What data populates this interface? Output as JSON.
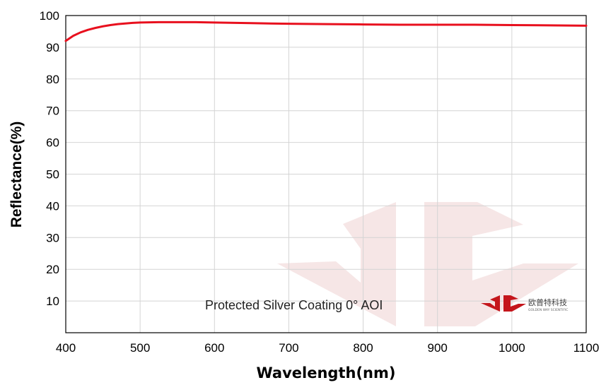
{
  "chart_data": {
    "type": "line",
    "title": "",
    "xlabel": "Wavelength(nm)",
    "ylabel": "Reflectance(%)",
    "xlim": [
      400,
      1100
    ],
    "ylim": [
      0,
      100
    ],
    "x_ticks": [
      400,
      500,
      600,
      700,
      800,
      900,
      1000,
      1100
    ],
    "y_ticks": [
      10,
      20,
      30,
      40,
      50,
      60,
      70,
      80,
      90,
      100
    ],
    "grid": true,
    "series": [
      {
        "color": "#e8101e",
        "x": [
          400,
          410,
          420,
          430,
          440,
          450,
          460,
          470,
          480,
          490,
          500,
          525,
          550,
          575,
          600,
          650,
          700,
          750,
          800,
          850,
          900,
          950,
          1000,
          1050,
          1100
        ],
        "y": [
          92.0,
          93.6,
          94.7,
          95.5,
          96.1,
          96.6,
          97.0,
          97.3,
          97.5,
          97.7,
          97.8,
          97.9,
          97.9,
          97.9,
          97.8,
          97.6,
          97.4,
          97.3,
          97.2,
          97.1,
          97.1,
          97.1,
          97.0,
          96.9,
          96.8
        ]
      }
    ],
    "annotation": "Protected Silver Coating  0°  AOI"
  },
  "logo": {
    "brand_cn": "欧普特科技",
    "brand_en": "GOLDEN WAY SCIENTIFIC",
    "color": "#c4161c",
    "watermark_color": "#f6e6e6"
  }
}
